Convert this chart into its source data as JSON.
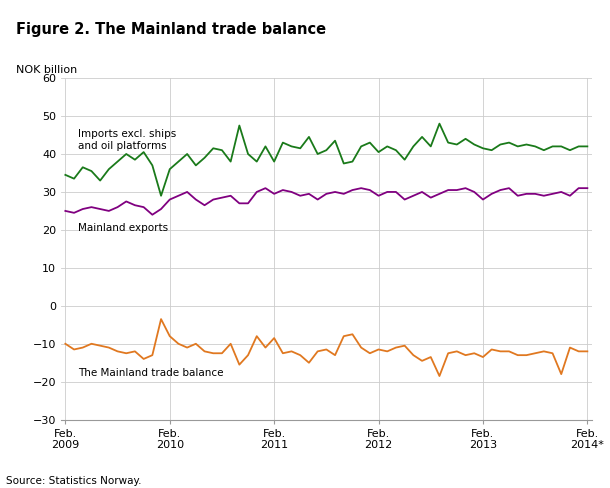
{
  "title": "Figure 2. The Mainland trade balance",
  "ylabel": "NOK billion",
  "source": "Source: Statistics Norway.",
  "ylim": [
    -30,
    60
  ],
  "yticks": [
    -30,
    -20,
    -10,
    0,
    10,
    20,
    30,
    40,
    50,
    60
  ],
  "xtick_labels": [
    "Feb.\n2009",
    "Feb.\n2010",
    "Feb.\n2011",
    "Feb.\n2012",
    "Feb.\n2013",
    "Feb.\n2014*"
  ],
  "color_imports": "#1a7a1a",
  "color_exports": "#800080",
  "color_balance": "#e07820",
  "label_imports": "Imports excl. ships\nand oil platforms",
  "label_exports": "Mainland exports",
  "label_balance": "The Mainland trade balance",
  "imports": [
    34.5,
    33.5,
    36.5,
    35.5,
    33.0,
    36.0,
    38.0,
    40.0,
    38.5,
    40.5,
    37.0,
    29.0,
    36.0,
    38.0,
    40.0,
    37.0,
    39.0,
    41.5,
    41.0,
    38.0,
    47.5,
    40.0,
    38.0,
    42.0,
    38.0,
    43.0,
    42.0,
    41.5,
    44.5,
    40.0,
    41.0,
    43.5,
    37.5,
    38.0,
    42.0,
    43.0,
    40.5,
    42.0,
    41.0,
    38.5,
    42.0,
    44.5,
    42.0,
    48.0,
    43.0,
    42.5,
    44.0,
    42.5,
    41.5,
    41.0,
    42.5,
    43.0,
    42.0,
    42.5,
    42.0,
    41.0,
    42.0,
    42.0,
    41.0,
    42.0,
    42.0
  ],
  "exports": [
    25.0,
    24.5,
    25.5,
    26.0,
    25.5,
    25.0,
    26.0,
    27.5,
    26.5,
    26.0,
    24.0,
    25.5,
    28.0,
    29.0,
    30.0,
    28.0,
    26.5,
    28.0,
    28.5,
    29.0,
    27.0,
    27.0,
    30.0,
    31.0,
    29.5,
    30.5,
    30.0,
    29.0,
    29.5,
    28.0,
    29.5,
    30.0,
    29.5,
    30.5,
    31.0,
    30.5,
    29.0,
    30.0,
    30.0,
    28.0,
    29.0,
    30.0,
    28.5,
    29.5,
    30.5,
    30.5,
    31.0,
    30.0,
    28.0,
    29.5,
    30.5,
    31.0,
    29.0,
    29.5,
    29.5,
    29.0,
    29.5,
    30.0,
    29.0,
    31.0,
    31.0
  ],
  "balance": [
    -10.0,
    -11.5,
    -11.0,
    -10.0,
    -10.5,
    -11.0,
    -12.0,
    -12.5,
    -12.0,
    -14.0,
    -13.0,
    -3.5,
    -8.0,
    -10.0,
    -11.0,
    -10.0,
    -12.0,
    -12.5,
    -12.5,
    -10.0,
    -15.5,
    -13.0,
    -8.0,
    -11.0,
    -8.5,
    -12.5,
    -12.0,
    -13.0,
    -15.0,
    -12.0,
    -11.5,
    -13.0,
    -8.0,
    -7.5,
    -11.0,
    -12.5,
    -11.5,
    -12.0,
    -11.0,
    -10.5,
    -13.0,
    -14.5,
    -13.5,
    -18.5,
    -12.5,
    -12.0,
    -13.0,
    -12.5,
    -13.5,
    -11.5,
    -12.0,
    -12.0,
    -13.0,
    -13.0,
    -12.5,
    -12.0,
    -12.5,
    -18.0,
    -11.0,
    -12.0,
    -12.0
  ]
}
